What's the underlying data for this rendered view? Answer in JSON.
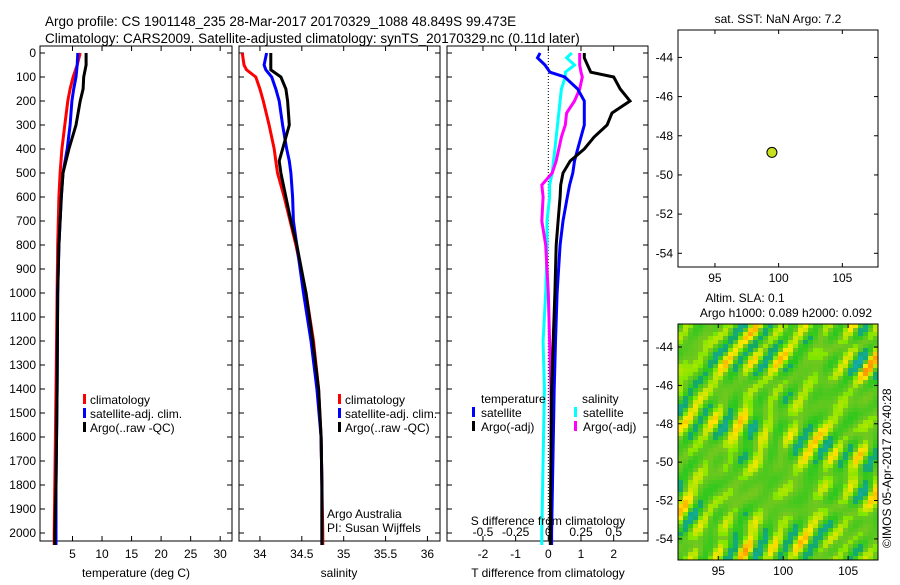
{
  "title_line1": "Argo profile: CS 1901148_235 28-Mar-2017 20170329_1088 48.849S 99.473E",
  "title_line2": "Climatology: CARS2009. Satellite-adjusted climatology: synTS_20170329.nc (0.11d later)",
  "colors": {
    "climatology": "#ff0000",
    "satellite": "#0000ff",
    "argo": "#000000",
    "sal_satellite": "#00ffff",
    "sal_argo": "#ff00ff",
    "dot": "#c8e020"
  },
  "depth_ticks": [
    "0",
    "100",
    "200",
    "300",
    "400",
    "500",
    "600",
    "700",
    "800",
    "900",
    "1000",
    "1100",
    "1200",
    "1300",
    "1400",
    "1500",
    "1600",
    "1700",
    "1800",
    "1900",
    "2000"
  ],
  "chart_data": [
    {
      "type": "line",
      "name": "temperature",
      "xlabel": "temperature (deg C)",
      "ylabel": "depth",
      "xlim": [
        -0.5,
        32
      ],
      "ylim": [
        2033,
        0
      ],
      "xticks": [
        "5",
        "10",
        "15",
        "20",
        "25",
        "30"
      ],
      "depth": [
        0,
        50,
        100,
        150,
        200,
        300,
        400,
        500,
        600,
        800,
        1000,
        1400,
        1800,
        2000,
        2050
      ],
      "series": [
        {
          "name": "climatology",
          "values": [
            6.3,
            5.8,
            5.1,
            4.6,
            4.2,
            3.7,
            3.2,
            2.9,
            2.7,
            2.5,
            2.4,
            2.2,
            2.0,
            1.9,
            1.9
          ]
        },
        {
          "name": "satellite-adj. clim.",
          "values": [
            5.9,
            5.8,
            5.6,
            5.2,
            4.9,
            4.6,
            4.1,
            3.4,
            3.1,
            2.7,
            2.5,
            2.4,
            2.2,
            2.2,
            2.2
          ]
        },
        {
          "name": "Argo(..raw -QC)",
          "values": [
            7.3,
            7.3,
            6.9,
            6.8,
            6.3,
            5.6,
            4.4,
            3.4,
            3.1,
            2.7,
            2.5,
            2.4,
            2.2,
            2.0,
            2.0
          ]
        }
      ],
      "legend": [
        "climatology",
        "satellite-adj. clim.",
        "Argo(..raw -QC)"
      ]
    },
    {
      "type": "line",
      "name": "salinity",
      "xlabel": "salinity",
      "xlim": [
        33.75,
        36.15
      ],
      "ylim": [
        2033,
        0
      ],
      "xticks": [
        "34",
        "34.5",
        "35",
        "35.5",
        "36"
      ],
      "depth": [
        0,
        50,
        70,
        100,
        150,
        200,
        300,
        400,
        450,
        500,
        600,
        700,
        800,
        1000,
        1200,
        1400,
        1600,
        1800,
        2000,
        2050
      ],
      "series": [
        {
          "name": "climatology",
          "values": [
            33.79,
            33.81,
            33.84,
            33.95,
            34.0,
            34.04,
            34.11,
            34.17,
            34.19,
            34.21,
            34.29,
            34.36,
            34.43,
            34.55,
            34.64,
            34.7,
            34.73,
            34.74,
            34.75,
            34.75
          ]
        },
        {
          "name": "satellite-adj. clim.",
          "values": [
            34.08,
            34.05,
            34.07,
            34.14,
            34.19,
            34.23,
            34.27,
            34.32,
            34.35,
            34.37,
            34.39,
            34.4,
            34.44,
            34.52,
            34.61,
            34.68,
            34.73,
            34.74,
            34.74,
            34.74
          ]
        },
        {
          "name": "Argo(..raw -QC)",
          "values": [
            34.13,
            34.13,
            34.13,
            34.25,
            34.31,
            34.33,
            34.35,
            34.27,
            34.23,
            34.25,
            34.31,
            34.37,
            34.44,
            34.55,
            34.63,
            34.7,
            34.73,
            34.74,
            34.74,
            34.74
          ]
        }
      ],
      "legend": [
        "climatology",
        "satellite-adj. clim.",
        "Argo(..raw -QC)"
      ],
      "annotation": [
        "Argo Australia",
        "PI: Susan Wijffels"
      ]
    },
    {
      "type": "line",
      "name": "difference",
      "xlabel": "T difference from climatology",
      "xlabel_top": "S difference from climatology",
      "xlim": [
        -3.1,
        3.05
      ],
      "s_scale": 0.25,
      "ylim": [
        2033,
        0
      ],
      "xticks": [
        "-2",
        "-1",
        "0",
        "1",
        "2"
      ],
      "xticks_s": [
        "-0.5",
        "-0.25",
        "0",
        "0.25",
        "0.5"
      ],
      "depth": [
        0,
        20,
        50,
        80,
        100,
        150,
        200,
        250,
        300,
        350,
        400,
        450,
        500,
        550,
        600,
        700,
        800,
        1000,
        1200,
        1400,
        2000,
        2050
      ],
      "series": [
        {
          "name": "T satellite",
          "unit": "T",
          "values": [
            -0.25,
            -0.33,
            -0.1,
            0.05,
            0.5,
            0.9,
            1.1,
            1.1,
            1.1,
            1.0,
            0.9,
            0.8,
            0.75,
            0.65,
            0.58,
            0.45,
            0.36,
            0.27,
            0.22,
            0.18,
            0.1,
            0.1
          ]
        },
        {
          "name": "T Argo(-adj)",
          "unit": "T",
          "values": [
            1.1,
            1.1,
            1.2,
            1.3,
            2.0,
            2.2,
            2.5,
            1.95,
            1.8,
            1.4,
            1.1,
            0.67,
            0.45,
            0.38,
            0.36,
            0.3,
            0.24,
            0.2,
            0.15,
            0.1,
            0.06,
            0.06
          ]
        },
        {
          "name": "S satellite",
          "unit": "S",
          "values": [
            0.18,
            0.14,
            0.2,
            0.13,
            0.13,
            0.1,
            0.09,
            0.08,
            0.07,
            0.06,
            0.05,
            0.04,
            0.03,
            0.01,
            0.01,
            -0.01,
            -0.01,
            -0.02,
            -0.04,
            -0.03,
            -0.05,
            -0.05
          ]
        },
        {
          "name": "S Argo(-adj)",
          "unit": "S",
          "values": [
            0.24,
            0.24,
            0.24,
            0.25,
            0.26,
            0.24,
            0.2,
            0.14,
            0.13,
            0.1,
            0.08,
            0.06,
            0.03,
            -0.05,
            -0.04,
            -0.05,
            -0.02,
            0.0,
            0.01,
            0.02,
            0.02,
            0.02
          ]
        }
      ],
      "legend_temperature_title": "temperature",
      "legend_salinity_title": "salinity",
      "legend_items": [
        "satellite",
        "Argo(-adj)"
      ]
    },
    {
      "type": "scatter",
      "name": "location-map",
      "title": "sat. SST: NaN Argo: 7.2",
      "xlim": [
        92.1,
        107.8
      ],
      "ylim": [
        -54.7,
        -42.6
      ],
      "xticks": [
        "95",
        "100",
        "105"
      ],
      "yticks": [
        "-44",
        "-46",
        "-48",
        "-50",
        "-52",
        "-54"
      ],
      "points": [
        {
          "lon": 99.473,
          "lat": -48.849
        }
      ]
    },
    {
      "type": "heatmap",
      "name": "sla-map",
      "title_line1": "Altim. SLA: 0.1",
      "title_line2": "Argo h1000: 0.089 h2000: 0.092",
      "xlim": [
        91.9,
        107.3
      ],
      "ylim": [
        -55.1,
        -42.8
      ],
      "xticks": [
        "95",
        "100",
        "105"
      ],
      "yticks": [
        "-44",
        "-46",
        "-48",
        "-50",
        "-52",
        "-54"
      ]
    }
  ],
  "credit": "©IMOS 05-Apr-2017 20:40:28"
}
